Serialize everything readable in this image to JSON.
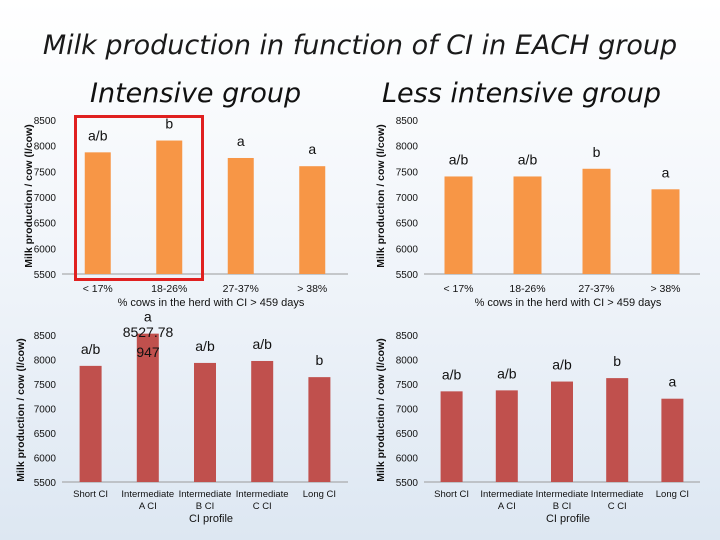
{
  "title": "Milk production in function of CI in EACH group",
  "subtitle_left": "Intensive group",
  "subtitle_right": "Less intensive group",
  "chart_data": [
    {
      "id": "top-left",
      "type": "bar",
      "color": "#f79646",
      "categories": [
        "< 17%",
        "18-26%",
        "27-37%",
        "> 38%"
      ],
      "values": [
        7870,
        8100,
        7760,
        7600
      ],
      "bar_labels": [
        "a/b",
        "b",
        "a",
        "a"
      ],
      "extra_labels": [],
      "xlabel": "% cows in the herd with CI > 459 days",
      "ylabel": "Milk production / cow (l/cow)",
      "ylim": [
        5500,
        8500
      ],
      "yticks": [
        "5500",
        "6000",
        "6500",
        "7000",
        "7500",
        "8000",
        "8500"
      ]
    },
    {
      "id": "top-right",
      "type": "bar",
      "color": "#f79646",
      "categories": [
        "< 17%",
        "18-26%",
        "27-37%",
        "> 38%"
      ],
      "values": [
        7400,
        7400,
        7550,
        7150
      ],
      "bar_labels": [
        "a/b",
        "a/b",
        "b",
        "a"
      ],
      "extra_labels": [],
      "xlabel": "% cows in the herd with CI > 459 days",
      "ylabel": "Milk production / cow (l/cow)",
      "ylim": [
        5500,
        8500
      ],
      "yticks": [
        "5500",
        "6000",
        "6500",
        "7000",
        "7500",
        "8000",
        "8500"
      ]
    },
    {
      "id": "bottom-left",
      "type": "bar",
      "color": "#c0504d",
      "categories": [
        "Short CI",
        "Intermediate A CI",
        "Intermediate B CI",
        "Intermediate C CI",
        "Long CI"
      ],
      "values": [
        7870,
        8527.78,
        7930,
        7970,
        7640
      ],
      "bar_labels": [
        "a/b",
        "a",
        "a/b",
        "a/b",
        "b"
      ],
      "extra_labels": [
        "8527.78",
        "947"
      ],
      "xlabel": "CI profile",
      "ylabel": "Milk production / cow (l/cow)",
      "ylim": [
        5500,
        8500
      ],
      "yticks": [
        "5500",
        "6000",
        "6500",
        "7000",
        "7500",
        "8000",
        "8500"
      ]
    },
    {
      "id": "bottom-right",
      "type": "bar",
      "color": "#c0504d",
      "categories": [
        "Short CI",
        "Intermediate A CI",
        "Intermediate B CI",
        "Intermediate C CI",
        "Long CI"
      ],
      "values": [
        7350,
        7370,
        7550,
        7620,
        7200
      ],
      "bar_labels": [
        "a/b",
        "a/b",
        "a/b",
        "b",
        "a"
      ],
      "extra_labels": [],
      "xlabel": "CI profile",
      "ylabel": "Milk production / cow (l/cow)",
      "ylim": [
        5500,
        8500
      ],
      "yticks": [
        "5500",
        "6000",
        "6500",
        "7000",
        "7500",
        "8000",
        "8500"
      ]
    }
  ]
}
